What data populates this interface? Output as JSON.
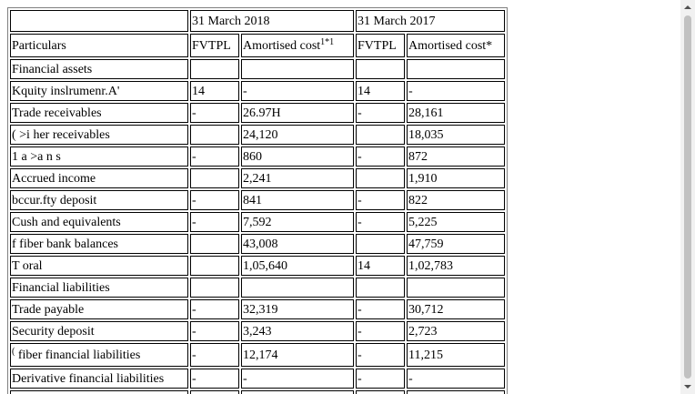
{
  "table": {
    "header1": [
      "",
      "31 March 2018",
      "31 March 2017"
    ],
    "header2": {
      "particulars": "Particulars",
      "fvtpl_2018": "FVTPL",
      "amortised_2018": "Amortised cost",
      "amortised_2018_mark": "1*1",
      "fvtpl_2017": "FVTPL",
      "amortised_2017": "Amortised cost*"
    },
    "rows": [
      [
        "Financial assets",
        "",
        "",
        "",
        ""
      ],
      [
        "Kquity inslrumenr.A'",
        "14",
        "-",
        "14",
        "-"
      ],
      [
        "Trade receivables",
        "-",
        "26.97H",
        "-",
        "28,161"
      ],
      [
        "( >i her receivables",
        "",
        "24,120",
        "",
        "18,035"
      ],
      [
        "1 a >a n s",
        "-",
        "860",
        "-",
        "872"
      ],
      [
        "Accrued income",
        "",
        "2,241",
        "",
        "1,910"
      ],
      [
        "bccur.fty deposit",
        "-",
        "841",
        "-",
        "822"
      ],
      [
        "Cush and equivalents",
        "-",
        "7,592",
        "-",
        "5,225"
      ],
      [
        "f fiber bank balances",
        "",
        "43,008",
        "",
        "47,759"
      ],
      [
        "T oral",
        "",
        "1,05,640",
        "14",
        "1,02,783"
      ],
      [
        "Financial liabilities",
        "",
        "",
        "",
        ""
      ],
      [
        "Trade payable",
        "-",
        "32,319",
        "-",
        "30,712"
      ],
      [
        "Security deposit",
        "-",
        "3,243",
        "-",
        "2,723"
      ],
      [
        "fiber financial liabilities",
        "-",
        "12,174",
        "-",
        "11,215"
      ],
      [
        "Derivative financial liabilities",
        "-",
        "-",
        "-",
        "-"
      ]
    ],
    "row14_prefix": "("
  }
}
